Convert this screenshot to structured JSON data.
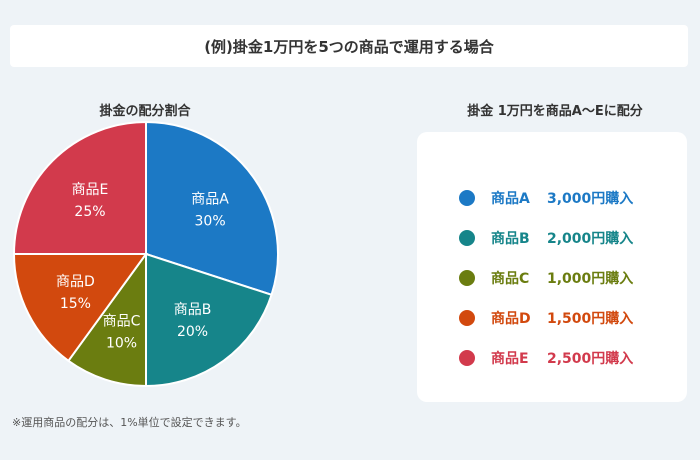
{
  "page": {
    "title": "(例)掛金1万円を5つの商品で運用する場合",
    "pie_heading": "掛金の配分割合",
    "legend_heading": "掛金 1万円を商品A〜Eに配分",
    "footnote": "※運用商品の配分は、1%単位で設定できます。"
  },
  "chart_data": {
    "type": "pie",
    "title": "掛金の配分割合",
    "slices": [
      {
        "name": "商品A",
        "value": 30,
        "label": "30%",
        "color": "#1c79c5",
        "legend_amount": "3,000円購入"
      },
      {
        "name": "商品B",
        "value": 20,
        "label": "20%",
        "color": "#16858a",
        "legend_amount": "2,000円購入"
      },
      {
        "name": "商品C",
        "value": 10,
        "label": "10%",
        "color": "#6b7d10",
        "legend_amount": "1,000円購入"
      },
      {
        "name": "商品D",
        "value": 15,
        "label": "15%",
        "color": "#d2490e",
        "legend_amount": "1,500円購入"
      },
      {
        "name": "商品E",
        "value": 25,
        "label": "25%",
        "color": "#d23a4c",
        "legend_amount": "2,500円購入"
      }
    ]
  }
}
